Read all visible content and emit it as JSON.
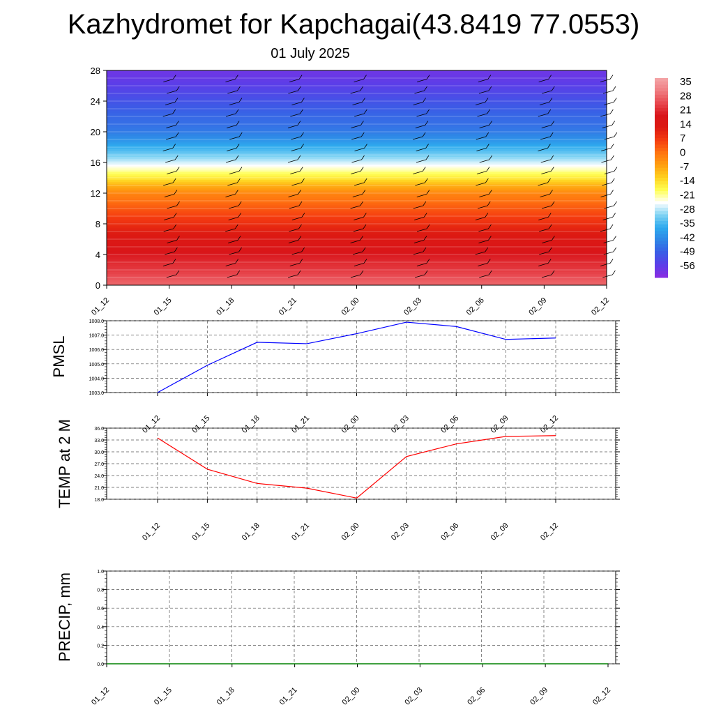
{
  "title": "Kazhydromet for Kapchagai(43.8419 77.0553)",
  "subtitle": "01 July 2025",
  "chart_data": [
    {
      "type": "heatmap",
      "name": "vertical-section",
      "x_ticks": [
        "01_12",
        "01_15",
        "01_18",
        "01_21",
        "02_00",
        "02_03",
        "02_06",
        "02_09",
        "02_12"
      ],
      "y_ticks": [
        "0",
        "4",
        "8",
        "12",
        "16",
        "20",
        "24",
        "28"
      ],
      "ylim": [
        0,
        28
      ],
      "levels": [
        0,
        1,
        2,
        3,
        4,
        5,
        6,
        7,
        8,
        9,
        10,
        11,
        12,
        13,
        14,
        15,
        16,
        17,
        18,
        19,
        20,
        21,
        22,
        23,
        24,
        25,
        26,
        27,
        28
      ],
      "temperature_profile": [
        33,
        30,
        27,
        25,
        23,
        20,
        18,
        15,
        12,
        9,
        6,
        3,
        0,
        -6,
        -14,
        -20,
        -26,
        -31,
        -36,
        -41,
        -45,
        -47,
        -48,
        -50,
        -52,
        -54,
        -56,
        -58,
        -59
      ],
      "colorbar_labels": [
        "35",
        "28",
        "21",
        "14",
        "7",
        "0",
        "-7",
        "-14",
        "-21",
        "-28",
        "-35",
        "-42",
        "-49",
        "-56"
      ],
      "colorbar_range": [
        -63,
        42
      ],
      "colorbar_colors": [
        "#8a2be2",
        "#5b3ee8",
        "#3a5de6",
        "#2f86e6",
        "#2eaaee",
        "#7fd3f3",
        "#ffffff",
        "#ffff55",
        "#ffd21f",
        "#ffa010",
        "#ff7410",
        "#f53d10",
        "#dd1a12",
        "#d9151a",
        "#e8484f",
        "#f07e82",
        "#f4a6a8"
      ],
      "grid": false
    },
    {
      "type": "line",
      "name": "pmsl",
      "ylabel": "PMSL",
      "x": [
        "01_12",
        "01_15",
        "01_18",
        "01_21",
        "02_00",
        "02_03",
        "02_06",
        "02_09",
        "02_12"
      ],
      "values": [
        1003.0,
        1004.9,
        1006.5,
        1006.4,
        1007.1,
        1007.9,
        1007.6,
        1006.7,
        1006.8
      ],
      "y_ticks": [
        "1003.0",
        "1004.0",
        "1005.0",
        "1006.0",
        "1007.0",
        "1008.0"
      ],
      "ylim": [
        1003,
        1008
      ],
      "color": "#0000ff",
      "grid": true
    },
    {
      "type": "line",
      "name": "temp-2m",
      "ylabel": "TEMP at 2 M",
      "x": [
        "01_12",
        "01_15",
        "01_18",
        "01_21",
        "02_00",
        "02_03",
        "02_06",
        "02_09",
        "02_12"
      ],
      "values": [
        33.5,
        25.6,
        22.0,
        20.8,
        18.3,
        28.8,
        32.0,
        33.9,
        34.1
      ],
      "y_ticks": [
        "18.0",
        "21.0",
        "24.0",
        "27.0",
        "30.0",
        "33.0",
        "36.0"
      ],
      "ylim": [
        18,
        36
      ],
      "color": "#ff0000",
      "grid": true
    },
    {
      "type": "line",
      "name": "precip",
      "ylabel": "PRECIP, mm",
      "x": [
        "01_12",
        "01_15",
        "01_18",
        "01_21",
        "02_00",
        "02_03",
        "02_06",
        "02_09",
        "02_12"
      ],
      "values": [
        0,
        0,
        0,
        0,
        0,
        0,
        0,
        0,
        0
      ],
      "y_ticks": [
        "0.0",
        "0.2",
        "0.4",
        "0.6",
        "0.8",
        "1.0"
      ],
      "ylim": [
        0,
        1
      ],
      "color": "#008000",
      "grid": true
    }
  ]
}
